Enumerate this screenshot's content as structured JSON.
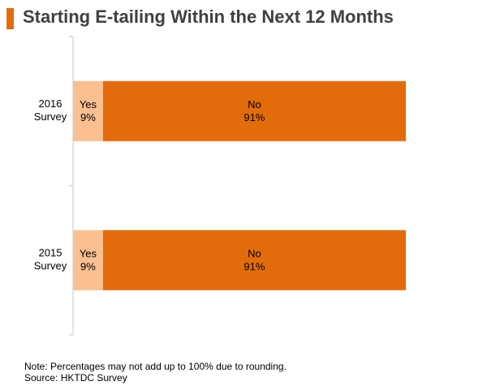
{
  "chart_data": {
    "type": "bar",
    "orientation": "horizontal",
    "stacked": true,
    "title": "Starting E-tailing Within the Next 12 Months",
    "categories": [
      [
        "2016",
        "Survey"
      ],
      [
        "2015",
        "Survey"
      ]
    ],
    "series": [
      {
        "name": "Yes",
        "values": [
          9,
          9
        ],
        "labels": [
          "9%",
          "9%"
        ],
        "color": "#fac090"
      },
      {
        "name": "No",
        "values": [
          91,
          91
        ],
        "labels": [
          "91%",
          "91%"
        ],
        "color": "#e36c0a"
      }
    ],
    "xlim": [
      0,
      100
    ],
    "grid": false,
    "legend": "none"
  },
  "footer": {
    "note": "Note: Percentages may not add up to 100% due to rounding.",
    "source": "Source: HKTDC Survey"
  },
  "colors": {
    "accent": "#e36c0a",
    "title_text": "#404040",
    "axis": "#d9d9d9"
  }
}
